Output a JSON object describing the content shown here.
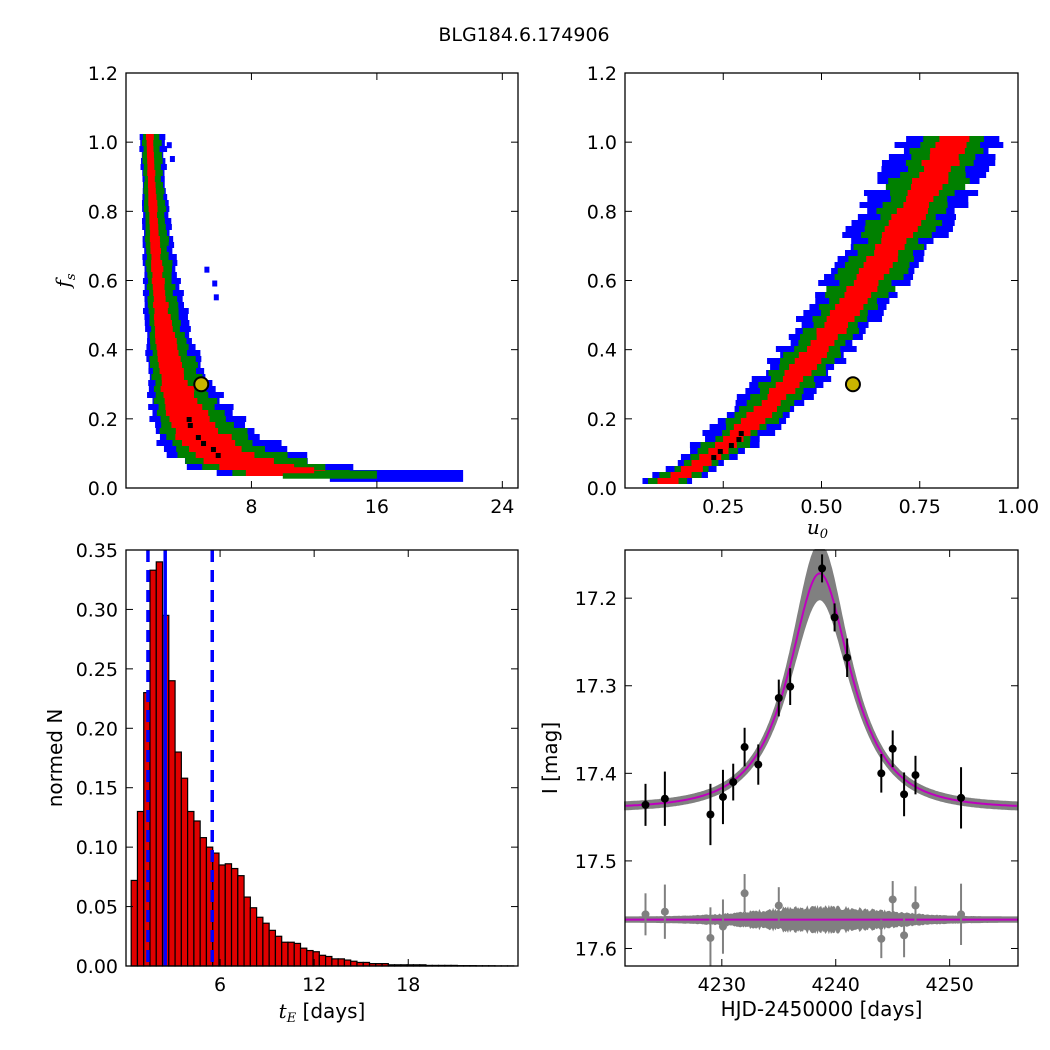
{
  "title": "BLG184.6.174906",
  "colors": {
    "sig1": "#ff0000",
    "sig2": "#008000",
    "sig3": "#0000ff",
    "best": "#000000",
    "model": "#bf00bf",
    "band": "#808080",
    "data": "#000000",
    "resid": "#808080",
    "bar": "#e00000",
    "marker": "#c8b400"
  },
  "chart_data": [
    {
      "type": "heatmap",
      "panel": "tE-fs",
      "xlabel": "",
      "ylabel": "f_s",
      "xlim": [
        0,
        25
      ],
      "ylim": [
        0,
        1.2
      ],
      "xticks": [
        "8",
        "16",
        "24"
      ],
      "yticks": [
        "0.0",
        "0.2",
        "0.4",
        "0.6",
        "0.8",
        "1.0",
        "1.2"
      ],
      "best_fit": {
        "x": 4.8,
        "y": 0.3
      },
      "contour_relation": "fs = 1.35/(tE-0.25)^1.55 approx"
    },
    {
      "type": "heatmap",
      "panel": "u0-fs",
      "xlabel": "u_0",
      "ylabel": "",
      "xlim": [
        0,
        1.0
      ],
      "ylim": [
        0,
        1.2
      ],
      "xticks": [
        "0.25",
        "0.50",
        "0.75",
        "1.00"
      ],
      "yticks": [
        "0.0",
        "0.2",
        "0.4",
        "0.6",
        "0.8",
        "1.0",
        "1.2"
      ],
      "best_fit": {
        "x": 0.58,
        "y": 0.3
      }
    },
    {
      "type": "bar",
      "panel": "tE-histogram",
      "xlabel": "t_E  [days]",
      "ylabel": "normed N",
      "xlim": [
        0,
        25
      ],
      "ylim": [
        0,
        0.35
      ],
      "xticks": [
        "6",
        "12",
        "18"
      ],
      "yticks": [
        "0.00",
        "0.05",
        "0.10",
        "0.15",
        "0.20",
        "0.25",
        "0.30",
        "0.35"
      ],
      "bin_start": 0.33,
      "bin_width": 0.4,
      "values": [
        0.072,
        0.13,
        0.23,
        0.333,
        0.34,
        0.295,
        0.24,
        0.18,
        0.158,
        0.13,
        0.122,
        0.108,
        0.1,
        0.095,
        0.085,
        0.086,
        0.082,
        0.076,
        0.058,
        0.049,
        0.041,
        0.036,
        0.03,
        0.025,
        0.02,
        0.02,
        0.019,
        0.015,
        0.013,
        0.012,
        0.009,
        0.008,
        0.006,
        0.006,
        0.005,
        0.004,
        0.003,
        0.003,
        0.002,
        0.002,
        0.002,
        0.001,
        0.001,
        0.001,
        0.001,
        0.001,
        0.001,
        0.0005,
        0.0005,
        0.0005,
        0.0005,
        0.0005,
        0.0003,
        0.0003,
        0.0003,
        0.0002,
        0.0002,
        0.0002,
        0.0001,
        0.0001,
        0.0001
      ],
      "median": 2.5,
      "lower": 1.4,
      "upper": 5.5
    },
    {
      "type": "line",
      "panel": "lightcurve",
      "xlabel": "HJD-2450000 [days]",
      "ylabel": "I [mag]",
      "xlim": [
        4221.5,
        4256
      ],
      "ylim": [
        17.62,
        17.145
      ],
      "xticks": [
        "4230",
        "4240",
        "4250"
      ],
      "yticks": [
        "17.2",
        "17.3",
        "17.4",
        "17.5",
        "17.6"
      ],
      "model": {
        "t0": 4238.6,
        "tE": 4.8,
        "u0": 0.58,
        "fs": 0.3,
        "base": 17.44
      },
      "resid_base": 17.567,
      "points": [
        {
          "t": 4223.3,
          "mag": 17.436,
          "err": 0.024
        },
        {
          "t": 4225.0,
          "mag": 17.429,
          "err": 0.031
        },
        {
          "t": 4229.0,
          "mag": 17.447,
          "err": 0.035
        },
        {
          "t": 4230.1,
          "mag": 17.427,
          "err": 0.031
        },
        {
          "t": 4231.0,
          "mag": 17.41,
          "err": 0.021
        },
        {
          "t": 4232.0,
          "mag": 17.37,
          "err": 0.022
        },
        {
          "t": 4233.2,
          "mag": 17.39,
          "err": 0.023
        },
        {
          "t": 4235.0,
          "mag": 17.314,
          "err": 0.021
        },
        {
          "t": 4236.0,
          "mag": 17.301,
          "err": 0.021
        },
        {
          "t": 4238.8,
          "mag": 17.166,
          "err": 0.016
        },
        {
          "t": 4239.9,
          "mag": 17.222,
          "err": 0.016
        },
        {
          "t": 4241.0,
          "mag": 17.268,
          "err": 0.022
        },
        {
          "t": 4244.0,
          "mag": 17.4,
          "err": 0.022
        },
        {
          "t": 4245.0,
          "mag": 17.372,
          "err": 0.021
        },
        {
          "t": 4246.0,
          "mag": 17.424,
          "err": 0.025
        },
        {
          "t": 4247.0,
          "mag": 17.402,
          "err": 0.022
        },
        {
          "t": 4251.0,
          "mag": 17.428,
          "err": 0.035
        }
      ],
      "residuals": [
        {
          "t": 4223.3,
          "mag": 17.561,
          "err": 0.024
        },
        {
          "t": 4225.0,
          "mag": 17.558,
          "err": 0.031
        },
        {
          "t": 4229.0,
          "mag": 17.588,
          "err": 0.035
        },
        {
          "t": 4230.1,
          "mag": 17.575,
          "err": 0.031
        },
        {
          "t": 4232.0,
          "mag": 17.537,
          "err": 0.022
        },
        {
          "t": 4235.0,
          "mag": 17.551,
          "err": 0.021
        },
        {
          "t": 4244.0,
          "mag": 17.589,
          "err": 0.022
        },
        {
          "t": 4245.0,
          "mag": 17.544,
          "err": 0.021
        },
        {
          "t": 4246.0,
          "mag": 17.585,
          "err": 0.025
        },
        {
          "t": 4247.0,
          "mag": 17.551,
          "err": 0.022
        },
        {
          "t": 4251.0,
          "mag": 17.561,
          "err": 0.035
        }
      ]
    }
  ]
}
